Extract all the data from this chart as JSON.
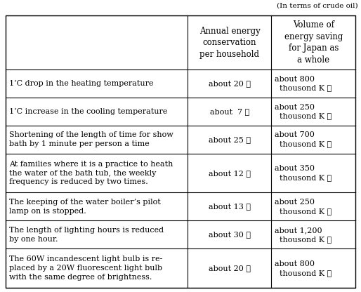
{
  "caption": "(In terms of crude oil)",
  "col_headers": [
    "",
    "Annual energy\nconservation\nper household",
    "Volume of\nenergy saving\nfor Japan as\na whole"
  ],
  "rows": [
    {
      "description": "1’C drop in the heating temperature",
      "per_household": "about 20 ℓ",
      "japan_total": "about 800\n  thousond K ℓ"
    },
    {
      "description": "1’C increase in the cooling temperature",
      "per_household": "about  7 ℓ",
      "japan_total": "about 250\n  thousond K ℓ"
    },
    {
      "description": "Shortening of the length of time for show\nbath by 1 minute per person a time",
      "per_household": "about 25 ℓ",
      "japan_total": "about 700\n  thousond K ℓ"
    },
    {
      "description": "At families where it is a practice to heath\nthe water of the bath tub, the weekly\nfrequency is reduced by two times.",
      "per_household": "about 12 ℓ",
      "japan_total": "about 350\n  thousond K ℓ"
    },
    {
      "description": "The keeping of the water boiler’s pilot\nlamp on is stopped.",
      "per_household": "about 13 ℓ",
      "japan_total": "about 250\n  thousond K ℓ"
    },
    {
      "description": "The length of lighting hours is reduced\nby one hour.",
      "per_household": "about 30 ℓ",
      "japan_total": "about 1,200\n  thousond K ℓ"
    },
    {
      "description": "The 60W incandescent light bulb is re-\nplaced by a 20W fluorescent light bulb\nwith the same degree of brightness.",
      "per_household": "about 20 ℓ",
      "japan_total": "about 800\n  thousond K ℓ"
    }
  ],
  "bg_color": "#ffffff",
  "border_color": "#000000",
  "text_color": "#000000",
  "font_size": 8.0,
  "header_font_size": 8.5,
  "caption_font_size": 7.5
}
